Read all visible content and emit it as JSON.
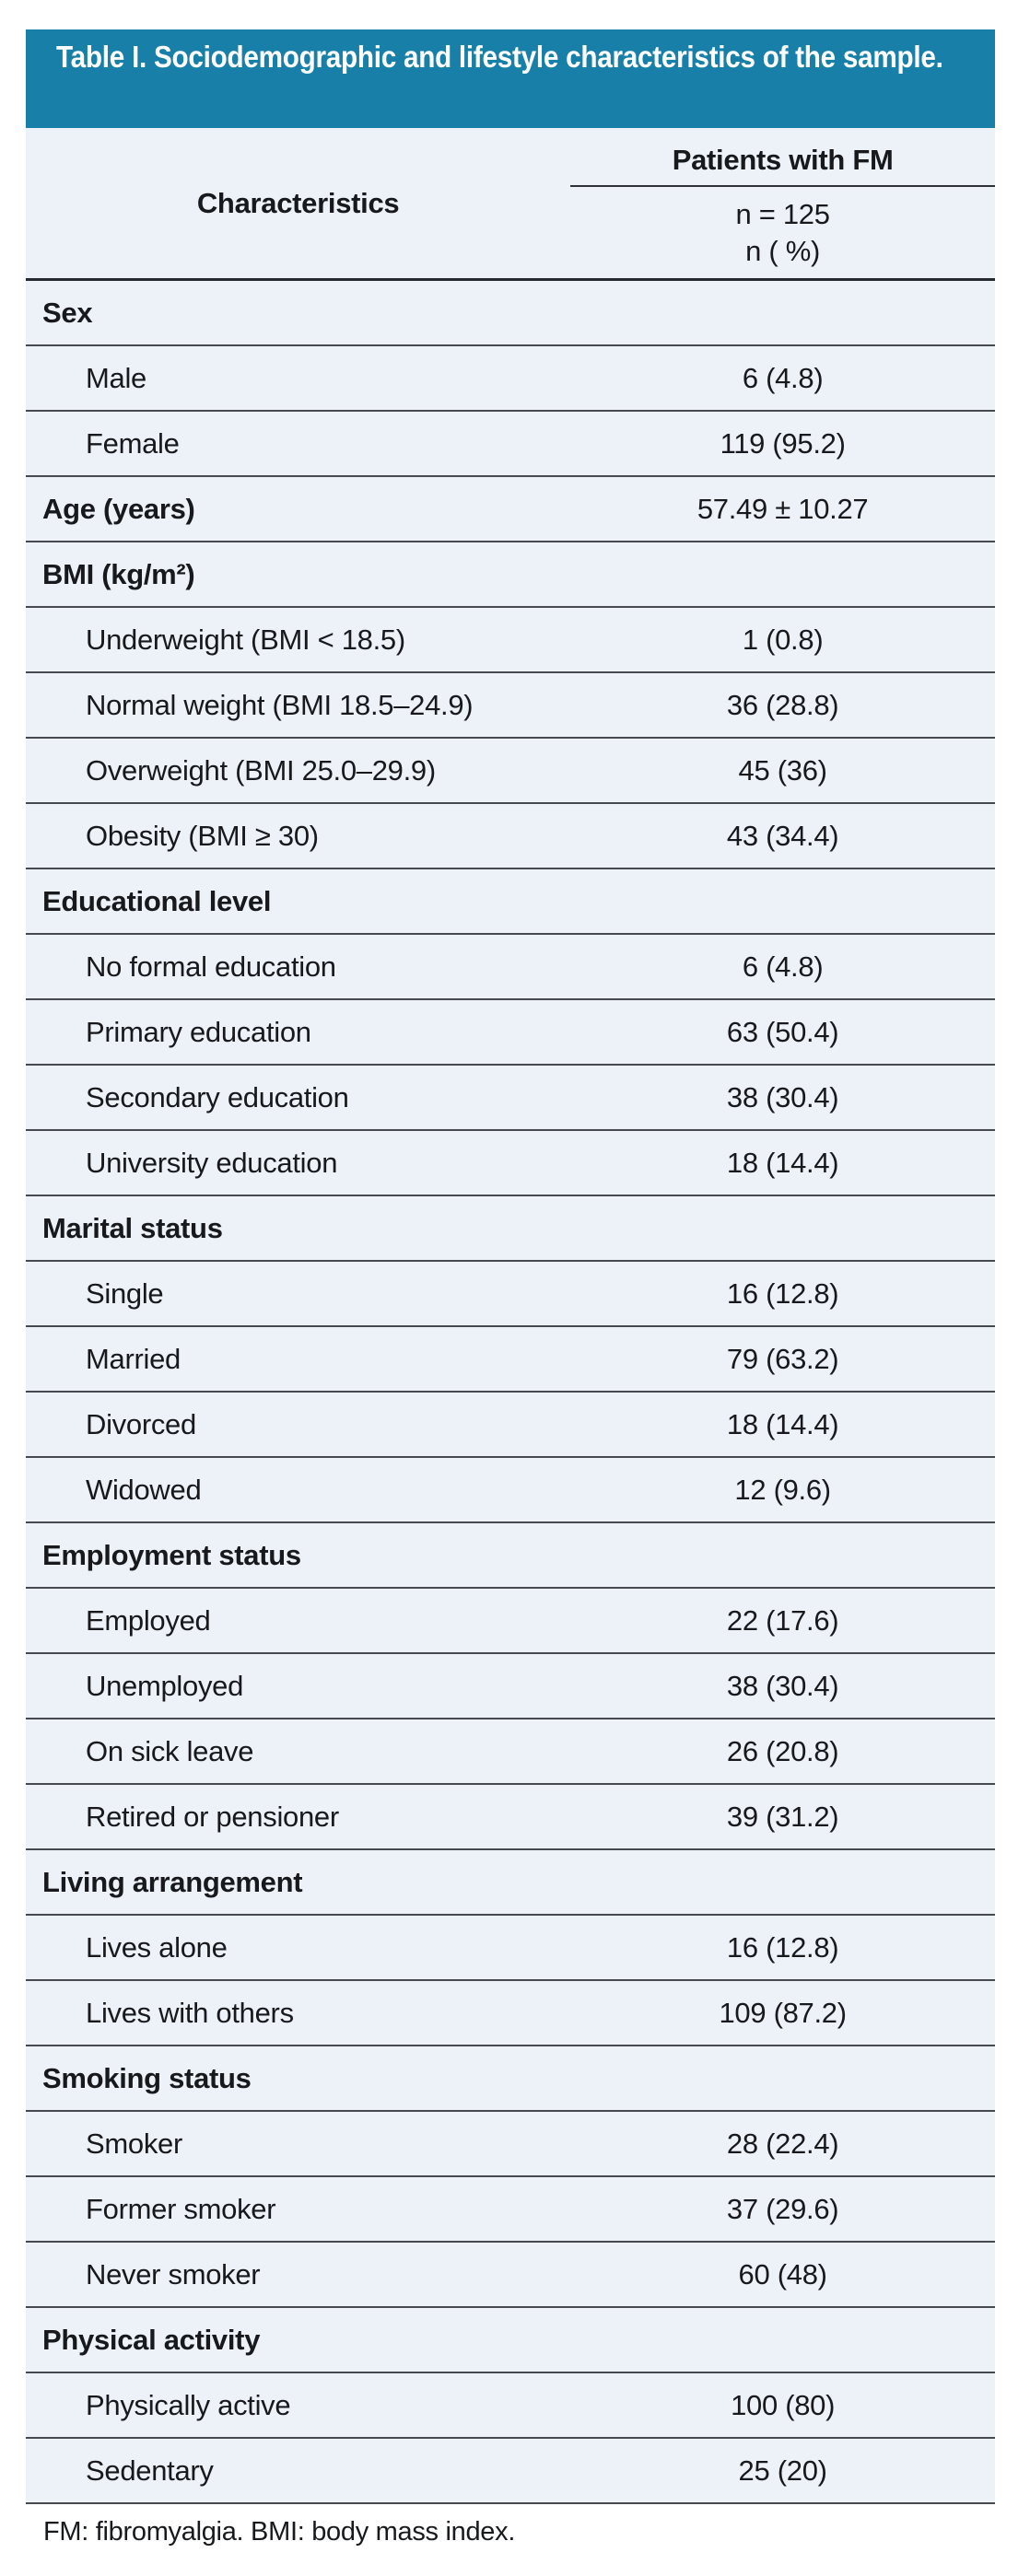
{
  "title": "Table I. Sociodemographic and lifestyle characteristics of the sample.",
  "footnote": "FM: fibromyalgia. BMI: body mass index.",
  "colors": {
    "header_bg": "#1880A8",
    "row_bg": "#EDF1F8",
    "divider": "#46494E",
    "divider_strong": "#26292D",
    "text": "#17191C",
    "title_text": "#FFFFFF"
  },
  "table": {
    "col1_header": "Characteristics",
    "col2_header": "Patients with FM",
    "col2_sub1": "n = 125",
    "col2_sub2": "n ( %)",
    "rows": [
      {
        "type": "section",
        "label": "Sex",
        "value": ""
      },
      {
        "type": "item",
        "label": "Male",
        "value": "6 (4.8)"
      },
      {
        "type": "item",
        "label": "Female",
        "value": "119 (95.2)"
      },
      {
        "type": "metric",
        "label": "Age (years)",
        "value": "57.49 ± 10.27"
      },
      {
        "type": "section",
        "label": "BMI (kg/m²)",
        "value": ""
      },
      {
        "type": "item",
        "label": "Underweight (BMI < 18.5)",
        "value": "1 (0.8)"
      },
      {
        "type": "item",
        "label": "Normal weight (BMI 18.5–24.9)",
        "value": "36 (28.8)"
      },
      {
        "type": "item",
        "label": "Overweight (BMI 25.0–29.9)",
        "value": "45 (36)"
      },
      {
        "type": "item",
        "label": "Obesity (BMI ≥ 30)",
        "value": "43 (34.4)"
      },
      {
        "type": "section",
        "label": "Educational level",
        "value": ""
      },
      {
        "type": "item",
        "label": "No formal education",
        "value": "6 (4.8)"
      },
      {
        "type": "item",
        "label": "Primary education",
        "value": "63 (50.4)"
      },
      {
        "type": "item",
        "label": "Secondary education",
        "value": "38 (30.4)"
      },
      {
        "type": "item",
        "label": "University education",
        "value": "18 (14.4)"
      },
      {
        "type": "section",
        "label": "Marital status",
        "value": ""
      },
      {
        "type": "item",
        "label": "Single",
        "value": "16 (12.8)"
      },
      {
        "type": "item",
        "label": "Married",
        "value": "79 (63.2)"
      },
      {
        "type": "item",
        "label": "Divorced",
        "value": "18 (14.4)"
      },
      {
        "type": "item",
        "label": "Widowed",
        "value": "12 (9.6)"
      },
      {
        "type": "section",
        "label": "Employment status",
        "value": ""
      },
      {
        "type": "item",
        "label": "Employed",
        "value": "22 (17.6)"
      },
      {
        "type": "item",
        "label": "Unemployed",
        "value": "38 (30.4)"
      },
      {
        "type": "item",
        "label": "On sick leave",
        "value": "26 (20.8)"
      },
      {
        "type": "item",
        "label": "Retired or pensioner",
        "value": "39 (31.2)"
      },
      {
        "type": "section",
        "label": "Living arrangement",
        "value": ""
      },
      {
        "type": "item",
        "label": "Lives alone",
        "value": "16 (12.8)"
      },
      {
        "type": "item",
        "label": "Lives with others",
        "value": "109 (87.2)"
      },
      {
        "type": "section",
        "label": "Smoking status",
        "value": ""
      },
      {
        "type": "item",
        "label": "Smoker",
        "value": "28 (22.4)"
      },
      {
        "type": "item",
        "label": "Former smoker",
        "value": "37 (29.6)"
      },
      {
        "type": "item",
        "label": "Never smoker",
        "value": "60 (48)"
      },
      {
        "type": "section",
        "label": "Physical activity",
        "value": ""
      },
      {
        "type": "item",
        "label": "Physically active",
        "value": "100 (80)"
      },
      {
        "type": "item",
        "label": "Sedentary",
        "value": "25 (20)"
      }
    ]
  }
}
